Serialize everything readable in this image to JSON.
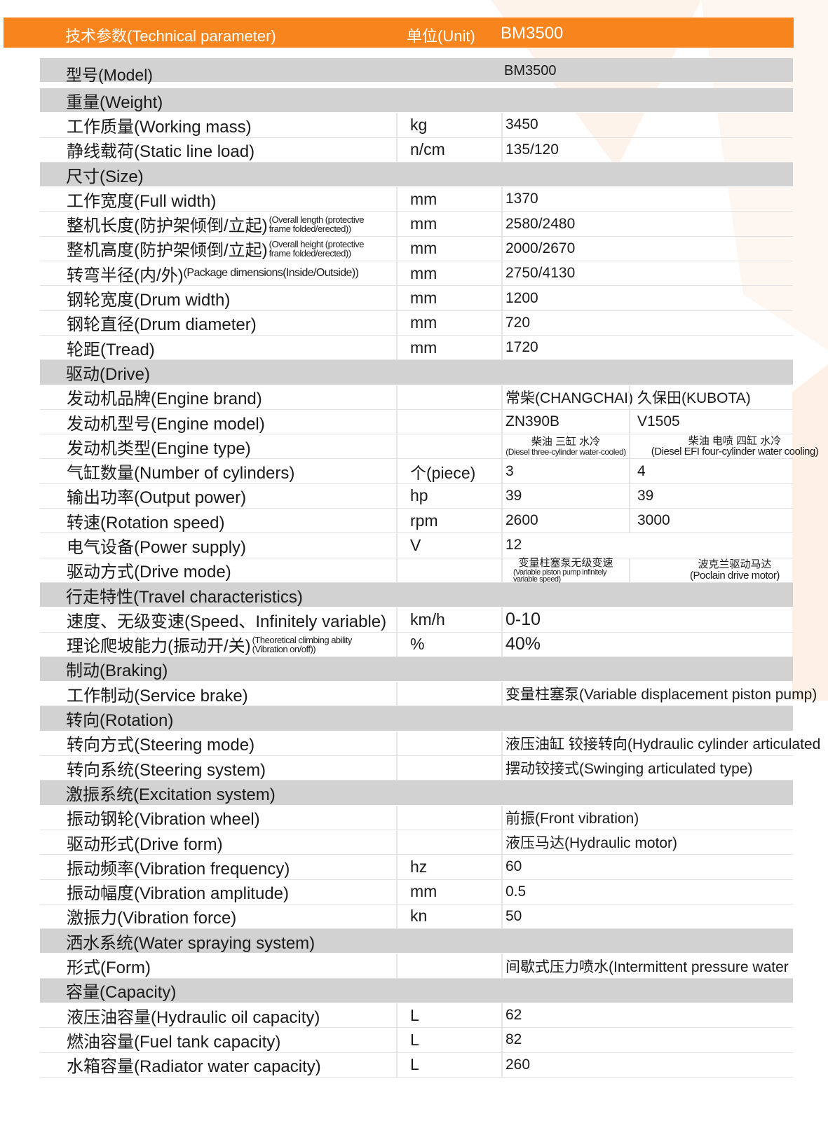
{
  "colors": {
    "header_bg": "#f7841c",
    "section_bg": "#d2d2d2"
  },
  "header": {
    "param": "技术参数(Technical parameter)",
    "unit": "单位(Unit)",
    "model": "BM3500"
  },
  "model_row": {
    "label": "型号(Model)",
    "value": "BM3500"
  },
  "rows": [
    {
      "type": "section",
      "label": "重量(Weight)"
    },
    {
      "label": "工作质量(Working mass)",
      "unit": "kg",
      "value": "3450"
    },
    {
      "label": "静线载荷(Static line load)",
      "unit": "n/cm",
      "value": "135/120"
    },
    {
      "type": "section",
      "label": "尺寸(Size)"
    },
    {
      "label": "工作宽度(Full width)",
      "unit": "mm",
      "value": "1370"
    },
    {
      "label": "整机长度(防护架倾倒/立起)",
      "note": "(Overall length (protective frame folded/erected))",
      "unit": "mm",
      "value": "2580/2480"
    },
    {
      "label": "整机高度(防护架倾倒/立起)",
      "note": "(Overall height (protective frame folded/erected))",
      "unit": "mm",
      "value": "2000/2670"
    },
    {
      "label": "转弯半径(内/外)",
      "note_inline": "(Package dimensions(Inside/Outside))",
      "unit": "mm",
      "value": "2750/4130"
    },
    {
      "label": "钢轮宽度(Drum width)",
      "unit": "mm",
      "value": "1200"
    },
    {
      "label": "钢轮直径(Drum diameter)",
      "unit": "mm",
      "value": "720"
    },
    {
      "label": "轮距(Tread)",
      "unit": "mm",
      "value": "1720"
    },
    {
      "type": "section",
      "label": "驱动(Drive)"
    },
    {
      "label": "发动机品牌(Engine brand)",
      "unit": "",
      "values": [
        "常柴(CHANGCHAI)",
        "久保田(KUBOTA)"
      ]
    },
    {
      "label": "发动机型号(Engine model)",
      "unit": "",
      "values": [
        "ZN390B",
        "V1505"
      ]
    },
    {
      "label": "发动机类型(Engine type)",
      "unit": "",
      "values": [
        {
          "cn": "柴油 三缸 水冷",
          "en": "(Diesel three-cylinder water-cooled)"
        },
        {
          "cn": "柴油 电喷 四缸 水冷",
          "en": "(Diesel EFI four-cylinder water cooling)"
        }
      ]
    },
    {
      "label": "气缸数量(Number of cylinders)",
      "unit": "个(piece)",
      "values": [
        "3",
        "4"
      ]
    },
    {
      "label": "输出功率(Output power)",
      "unit": "hp",
      "values": [
        "39",
        "39"
      ]
    },
    {
      "label": "转速(Rotation speed)",
      "unit": "rpm",
      "values": [
        "2600",
        "3000"
      ]
    },
    {
      "label": "电气设备(Power supply)",
      "unit": "V",
      "value": "12"
    },
    {
      "label": "驱动方式(Drive mode)",
      "unit": "",
      "values": [
        {
          "cn": "变量柱塞泵无级变速",
          "en": "(Variable piston pump infinitely variable speed)"
        },
        {
          "cn": "波克兰驱动马达",
          "en": "(Poclain drive motor)"
        }
      ]
    },
    {
      "type": "section",
      "label": "行走特性(Travel characteristics)"
    },
    {
      "label": "速度、无级变速(Speed、Infinitely variable)",
      "unit": "km/h",
      "value": "0-10",
      "big": true
    },
    {
      "label": "理论爬坡能力(振动开/关)",
      "note": "(Theoretical climbing ability (Vibration on/off))",
      "unit": "%",
      "value": "40%",
      "big": true
    },
    {
      "type": "section",
      "label": "制动(Braking)"
    },
    {
      "label": "工作制动(Service brake)",
      "unit": "",
      "value": "变量柱塞泵(Variable displacement piston pump)"
    },
    {
      "type": "section",
      "label": "转向(Rotation)"
    },
    {
      "label": "转向方式(Steering mode)",
      "unit": "",
      "value": "液压油缸 铰接转向(Hydraulic cylinder articulated"
    },
    {
      "label": "转向系统(Steering system)",
      "unit": "",
      "value": "摆动铰接式(Swinging articulated type)"
    },
    {
      "type": "section",
      "label": "激振系统(Excitation system)"
    },
    {
      "label": "振动钢轮(Vibration wheel)",
      "unit": "",
      "value": "前振(Front vibration)"
    },
    {
      "label": "驱动形式(Drive form)",
      "unit": "",
      "value": "液压马达(Hydraulic motor)"
    },
    {
      "label": "振动频率(Vibration frequency)",
      "unit": "hz",
      "value": "60"
    },
    {
      "label": "振动幅度(Vibration amplitude)",
      "unit": "mm",
      "value": "0.5"
    },
    {
      "label": "激振力(Vibration force)",
      "unit": "kn",
      "value": "50"
    },
    {
      "type": "section",
      "label": "洒水系统(Water spraying system)"
    },
    {
      "label": "形式(Form)",
      "unit": "",
      "value": "间歇式压力喷水(Intermittent pressure water"
    },
    {
      "type": "section",
      "label": "容量(Capacity)"
    },
    {
      "label": "液压油容量(Hydraulic oil capacity)",
      "unit": "L",
      "value": "62"
    },
    {
      "label": "燃油容量(Fuel tank capacity)",
      "unit": "L",
      "value": "82"
    },
    {
      "label": "水箱容量(Radiator water capacity)",
      "unit": "L",
      "value": "260"
    }
  ]
}
